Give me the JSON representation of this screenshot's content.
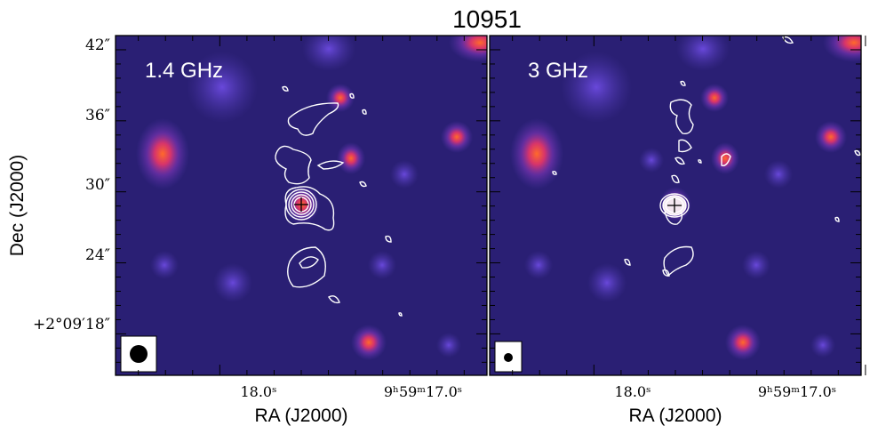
{
  "figure": {
    "title": "10951",
    "ylabel": "Dec (J2000)",
    "xlabel": "RA (J2000)"
  },
  "chart_data": [
    {
      "type": "scatter",
      "panel_label": "1.4 GHz",
      "xlabel": "RA (J2000)",
      "ylabel": "Dec (J2000)",
      "x_tick_labels": [
        "18.0ˢ",
        "9ʰ59ᵐ17.0ˢ"
      ],
      "y_tick_labels": [
        "42″",
        "36″",
        "30″",
        "24″",
        "+2°09′18″"
      ],
      "x_ticks_sec": [
        18.0,
        17.0
      ],
      "y_ticks_arcsec": [
        42,
        36,
        30,
        24,
        18
      ],
      "xlim_ra_sec": [
        18.384,
        17.016
      ],
      "ylim_dec_arcsec": [
        14.5,
        43.2
      ],
      "target": {
        "ra_sec": 17.74,
        "dec_arcsec": 27.6
      },
      "beam": "circle"
    },
    {
      "type": "scatter",
      "panel_label": "3 GHz",
      "xlabel": "RA (J2000)",
      "x_tick_labels": [
        "18.0ˢ",
        "9ʰ59ᵐ17.0ˢ"
      ],
      "x_ticks_sec": [
        18.0,
        17.0
      ],
      "xlim_ra_sec": [
        18.384,
        17.016
      ],
      "ylim_dec_arcsec": [
        14.5,
        43.2
      ],
      "target": {
        "ra_sec": 17.74,
        "dec_arcsec": 27.6
      },
      "beam": "circle"
    }
  ],
  "colors": {
    "background": "#2a1f74",
    "source_core": "#ff5a2a",
    "source_mid": "#c02a8a",
    "source_halo": "#6a3fc8",
    "contour": "#ffffff"
  }
}
